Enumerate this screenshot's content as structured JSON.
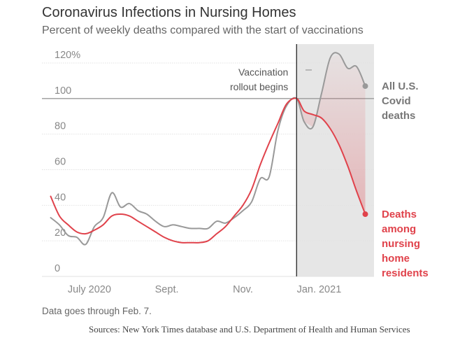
{
  "chart_data": {
    "type": "line",
    "title": "Coronavirus Infections in Nursing Homes",
    "subtitle": "Percent of weekly deaths compared with the start of vaccinations",
    "x_tick_labels": [
      "July 2020",
      "Sept.",
      "Nov.",
      "Jan. 2021"
    ],
    "x_tick_dates": [
      "2020-07-01",
      "2020-09-01",
      "2020-11-01",
      "2021-01-01"
    ],
    "y_tick_labels": [
      "0",
      "20",
      "40",
      "60",
      "80",
      "100",
      "120%"
    ],
    "y_ticks": [
      0,
      20,
      40,
      60,
      80,
      100,
      120
    ],
    "ylim": [
      0,
      120
    ],
    "xlim": [
      "2020-05-24",
      "2021-02-14"
    ],
    "grid": true,
    "annotation": {
      "lines": [
        "Vaccination",
        "rollout begins"
      ],
      "date": "2020-12-14"
    },
    "series": [
      {
        "name": "All U.S. Covid deaths",
        "label_lines": [
          "All U.S.",
          "Covid",
          "deaths"
        ],
        "color": "#999999",
        "dates": [
          "2020-05-31",
          "2020-06-07",
          "2020-06-14",
          "2020-06-21",
          "2020-06-28",
          "2020-07-05",
          "2020-07-12",
          "2020-07-19",
          "2020-07-26",
          "2020-08-02",
          "2020-08-09",
          "2020-08-16",
          "2020-08-23",
          "2020-08-30",
          "2020-09-06",
          "2020-09-13",
          "2020-09-20",
          "2020-09-27",
          "2020-10-04",
          "2020-10-11",
          "2020-10-18",
          "2020-10-25",
          "2020-11-01",
          "2020-11-08",
          "2020-11-15",
          "2020-11-22",
          "2020-11-29",
          "2020-12-06",
          "2020-12-14",
          "2020-12-20",
          "2020-12-27",
          "2021-01-03",
          "2021-01-10",
          "2021-01-17",
          "2021-01-24",
          "2021-01-31",
          "2021-02-07"
        ],
        "values": [
          33,
          29,
          23,
          22,
          18,
          28,
          33,
          47,
          39,
          41,
          37,
          35,
          31,
          28,
          29,
          28,
          27,
          27,
          27,
          31,
          30,
          33,
          37,
          42,
          55,
          56,
          82,
          96,
          100,
          87,
          84,
          103,
          123,
          125,
          117,
          118,
          107
        ]
      },
      {
        "name": "Deaths among nursing home residents",
        "label_lines": [
          "Deaths",
          "among",
          "nursing",
          "home",
          "residents"
        ],
        "color": "#e0424b",
        "dates": [
          "2020-05-31",
          "2020-06-07",
          "2020-06-14",
          "2020-06-21",
          "2020-06-28",
          "2020-07-05",
          "2020-07-12",
          "2020-07-19",
          "2020-07-26",
          "2020-08-02",
          "2020-08-09",
          "2020-08-16",
          "2020-08-23",
          "2020-08-30",
          "2020-09-06",
          "2020-09-13",
          "2020-09-20",
          "2020-09-27",
          "2020-10-04",
          "2020-10-11",
          "2020-10-18",
          "2020-10-25",
          "2020-11-01",
          "2020-11-08",
          "2020-11-15",
          "2020-11-22",
          "2020-11-29",
          "2020-12-06",
          "2020-12-14",
          "2020-12-20",
          "2020-12-27",
          "2021-01-03",
          "2021-01-10",
          "2021-01-17",
          "2021-01-24",
          "2021-01-31",
          "2021-02-07"
        ],
        "values": [
          45,
          34,
          29,
          25,
          24,
          26,
          29,
          34,
          35,
          34,
          31,
          28,
          25,
          22,
          20,
          19,
          19,
          19,
          20,
          24,
          28,
          34,
          40,
          49,
          63,
          75,
          86,
          97,
          100,
          93,
          91,
          89,
          83,
          74,
          62,
          48,
          35
        ]
      }
    ]
  },
  "note": "Data goes through Feb. 7.",
  "source": "Sources: New York Times database and U.S. Department of Health and Human Services"
}
